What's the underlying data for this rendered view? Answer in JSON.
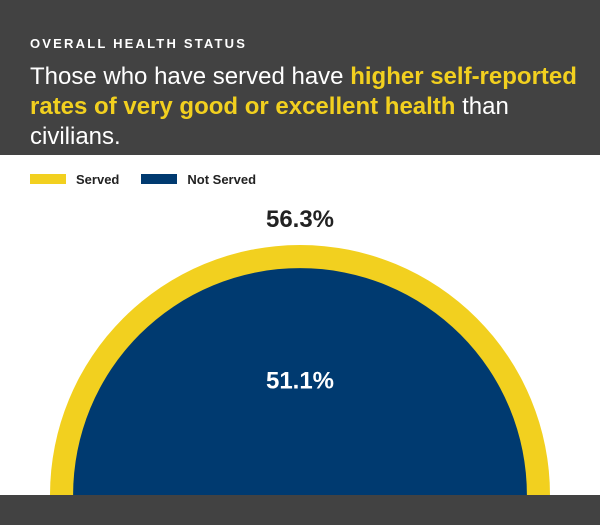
{
  "header": {
    "eyebrow": "OVERALL HEALTH STATUS",
    "headline_part1": "Those who have served have ",
    "headline_highlight": "higher self-reported rates of very good or excellent health",
    "headline_part2": " than civilians."
  },
  "colors": {
    "header_bg": "#424242",
    "served": "#f2d01f",
    "not_served": "#003a70"
  },
  "chart_data": {
    "type": "area",
    "title": "",
    "series": [
      {
        "name": "Served",
        "value": 56.3,
        "label": "56.3%"
      },
      {
        "name": "Not Served",
        "value": 51.1,
        "label": "51.1%"
      }
    ],
    "legend": {
      "position": "top-left"
    },
    "units": "%"
  }
}
